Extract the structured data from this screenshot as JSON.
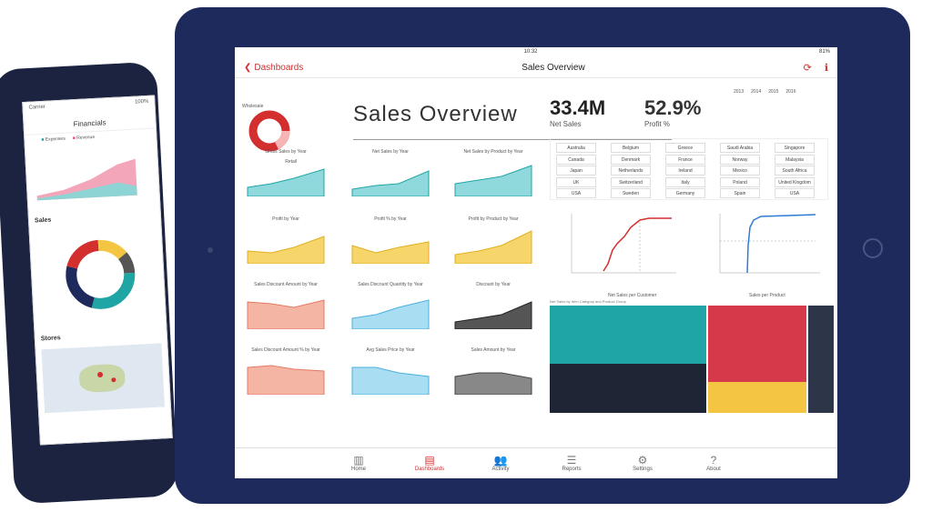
{
  "tablet": {
    "status": {
      "time": "10:32",
      "battery": "81%"
    },
    "nav": {
      "back_label": "Dashboards",
      "title": "Sales Overview"
    },
    "header": {
      "title": "Sales Overview"
    },
    "kpis": [
      {
        "value": "33.4M",
        "label": "Net Sales"
      },
      {
        "value": "52.9%",
        "label": "Profit %"
      }
    ],
    "years": [
      "2013",
      "2014",
      "2015",
      "2016"
    ],
    "donut_labels": {
      "top": "Wholesale",
      "bottom": "Retail"
    },
    "mini_charts": [
      "Gross Sales by Year",
      "Net Sales by Year",
      "Net Sales by Product by Year",
      "Profit by Year",
      "Profit % by Year",
      "Profit by Product by Year",
      "Sales Discount Amount by Year",
      "Sales Discount Quantity by Year",
      "Discount by Year",
      "Sales Discount Amount % by Year",
      "Avg Sales Price by Year",
      "Sales Amount by Year"
    ],
    "slicer": [
      "Australia",
      "Canada",
      "Japan",
      "UK",
      "USA",
      "Belgium",
      "Denmark",
      "Netherlands",
      "Switzerland",
      "Sweden",
      "Greece",
      "France",
      "Ireland",
      "Italy",
      "Germany",
      "Saudi Arabia",
      "Norway",
      "Mexico",
      "Poland",
      "Spain",
      "Singapore",
      "Malaysia",
      "South Africa",
      "United Kingdom",
      "USA"
    ],
    "line_titles": [
      "Net Sales per Customer",
      "Sales per Product"
    ],
    "treemap_caption": "Net Sales by Item Category and Product Group",
    "bottom_nav": [
      {
        "label": "Home",
        "icon": "bar-chart-icon",
        "active": false
      },
      {
        "label": "Dashboards",
        "icon": "dashboard-icon",
        "active": true
      },
      {
        "label": "Activity",
        "icon": "people-icon",
        "active": false
      },
      {
        "label": "Reports",
        "icon": "report-icon",
        "active": false
      },
      {
        "label": "Settings",
        "icon": "gear-icon",
        "active": false
      },
      {
        "label": "About",
        "icon": "question-icon",
        "active": false
      }
    ]
  },
  "phone": {
    "status_left": "Carrier",
    "status_right": "100%",
    "title": "Financials",
    "legend": [
      "Expenses",
      "Revenue"
    ],
    "sections": [
      "Sales",
      "Stores"
    ],
    "colors": {
      "accent": "#d32f2f",
      "teal": "#20a5a5",
      "navy": "#1f2a5c",
      "yellow": "#f4c542"
    }
  }
}
